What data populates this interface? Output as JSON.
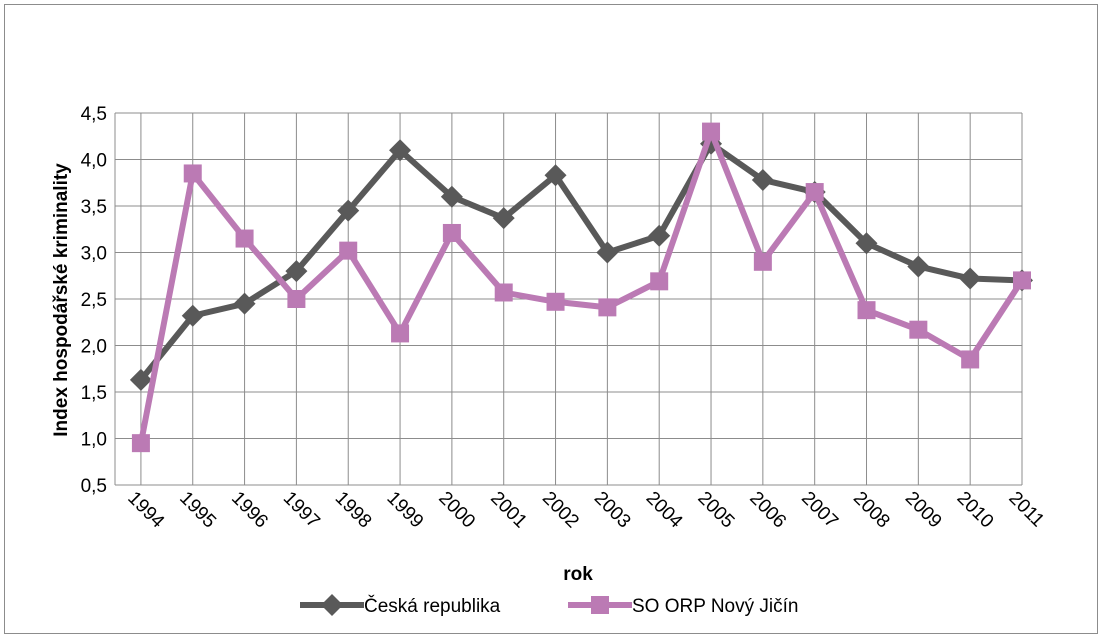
{
  "chart_data": {
    "type": "line",
    "categories": [
      "1994",
      "1995",
      "1996",
      "1997",
      "1998",
      "1999",
      "2000",
      "2001",
      "2002",
      "2003",
      "2004",
      "2005",
      "2006",
      "2007",
      "2008",
      "2009",
      "2010",
      "2011"
    ],
    "series": [
      {
        "name": "Česká republika",
        "color": "#595959",
        "marker": "diamond",
        "values": [
          1.63,
          2.32,
          2.45,
          2.8,
          3.45,
          4.1,
          3.6,
          3.37,
          3.83,
          3.0,
          3.18,
          4.17,
          3.78,
          3.65,
          3.1,
          2.85,
          2.72,
          2.7
        ]
      },
      {
        "name": "SO ORP Nový Jičín",
        "color": "#bb7ab4",
        "marker": "square",
        "values": [
          0.95,
          3.85,
          3.15,
          2.5,
          3.02,
          2.13,
          3.21,
          2.57,
          2.47,
          2.41,
          2.69,
          4.3,
          2.9,
          3.65,
          2.38,
          2.17,
          1.85,
          2.7
        ]
      }
    ],
    "x_label": "rok",
    "y_label": "Index hospodářské kriminality",
    "ylim": [
      0.5,
      4.5
    ],
    "yticks": [
      {
        "value": 0.5,
        "label": "0,5"
      },
      {
        "value": 1.0,
        "label": "1,0"
      },
      {
        "value": 1.5,
        "label": "1,5"
      },
      {
        "value": 2.0,
        "label": "2,0"
      },
      {
        "value": 2.5,
        "label": "2,5"
      },
      {
        "value": 3.0,
        "label": "3,0"
      },
      {
        "value": 3.5,
        "label": "3,5"
      },
      {
        "value": 4.0,
        "label": "4,0"
      },
      {
        "value": 4.5,
        "label": "4,5"
      }
    ],
    "grid": true,
    "legend": "bottom"
  }
}
